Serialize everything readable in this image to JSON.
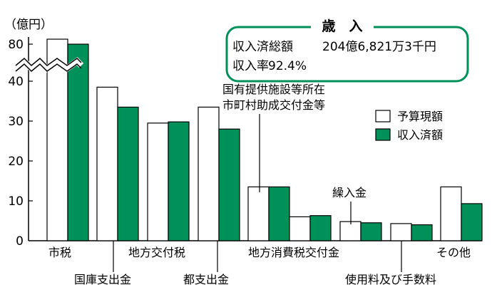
{
  "chart_data": {
    "type": "bar",
    "unit_label": "（億円）",
    "categories": [
      "市税",
      "国庫支出金",
      "地方交付税",
      "都支出金",
      "国有提供施設等所在市町村助成交付金等",
      "地方消費税交付金",
      "繰入金",
      "使用料及び手数料",
      "その他"
    ],
    "category_labels": [
      "市税",
      "国庫支出金",
      "地方交付税",
      "都支出金",
      "国有提供施設等所在",
      "市町村助成交付金等",
      "地方消費税交付金",
      "繰入金",
      "使用料及び手数料",
      "その他"
    ],
    "series": [
      {
        "name": "予算現額",
        "color": "#ffffff",
        "values": [
          82,
          38.5,
          29.5,
          33.5,
          13.5,
          6,
          4.8,
          4.3,
          13.5
        ]
      },
      {
        "name": "収入済額",
        "color": "#00915a",
        "values": [
          80,
          33.5,
          29.8,
          28,
          13.5,
          6.3,
          4.5,
          4,
          9.3
        ]
      }
    ],
    "y_ticks": [
      "0",
      "10",
      "20",
      "30",
      "40",
      "80"
    ],
    "axis_break": "between 40 and 80",
    "legend_position": "right",
    "summary": {
      "title": "歳　入",
      "total_label": "収入済総額",
      "total_value": "204億6,821万3千円",
      "rate_label": "収入率",
      "rate_value": "92.4%"
    }
  }
}
